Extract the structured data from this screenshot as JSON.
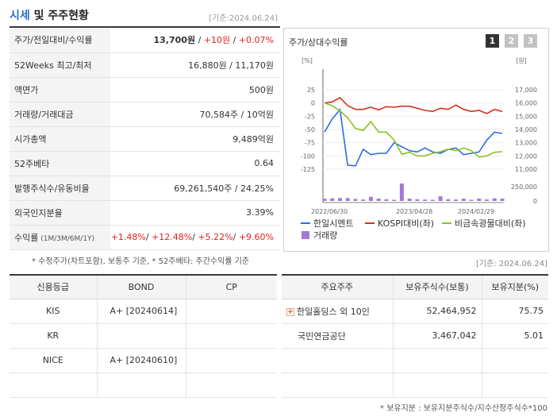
{
  "header": {
    "title_a": "시세",
    "title_b": " 및 주주현황",
    "date": "[기준:2024.06.24]"
  },
  "price_table": [
    {
      "label": "주가/전일대비/수익률",
      "parts": [
        {
          "text": "13,700원",
          "style": "bold"
        },
        {
          "text": " / ",
          "style": ""
        },
        {
          "text": "+10원",
          "style": "red"
        },
        {
          "text": " / ",
          "style": ""
        },
        {
          "text": "+0.07%",
          "style": "red"
        }
      ]
    },
    {
      "label": "52Weeks 최고/최저",
      "parts": [
        {
          "text": "16,880원 / 11,170원",
          "style": ""
        }
      ]
    },
    {
      "label": "액면가",
      "parts": [
        {
          "text": "500원",
          "style": ""
        }
      ]
    },
    {
      "label": "거래량/거래대금",
      "parts": [
        {
          "text": "70,584주 / 10억원",
          "style": ""
        }
      ]
    },
    {
      "label": "시가총액",
      "parts": [
        {
          "text": "9,489억원",
          "style": ""
        }
      ]
    },
    {
      "label": "52주베타",
      "parts": [
        {
          "text": "0.64",
          "style": ""
        }
      ]
    },
    {
      "label": "발행주식수/유동비율",
      "parts": [
        {
          "text": "69,261,540주 / 24.25%",
          "style": ""
        }
      ]
    },
    {
      "label": "외국인지분율",
      "parts": [
        {
          "text": "3.39%",
          "style": ""
        }
      ]
    },
    {
      "label": "수익률",
      "label_small": " (1M/3M/6M/1Y)",
      "parts": [
        {
          "text": "+1.48%",
          "style": "red"
        },
        {
          "text": "/ ",
          "style": ""
        },
        {
          "text": "+12.48%",
          "style": "red"
        },
        {
          "text": "/ ",
          "style": ""
        },
        {
          "text": "+5.22%",
          "style": "red"
        },
        {
          "text": "/ ",
          "style": ""
        },
        {
          "text": "+9.60%",
          "style": "red"
        }
      ]
    }
  ],
  "price_note": "* 수정주가(차트포함), 보통주 기준, * 52주베타: 주간수익률 기준",
  "chart": {
    "title": "주가/상대수익률",
    "pages": [
      "1",
      "2",
      "3"
    ],
    "active_page": 0,
    "left_unit": "[%]",
    "right_unit": "[원]",
    "left_ticks": [
      "25",
      "0",
      "-25",
      "-50",
      "-75",
      "-100",
      "-125"
    ],
    "right_ticks": [
      "17,000",
      "16,000",
      "15,000",
      "14,000",
      "13,000",
      "12,000",
      "11,000"
    ],
    "vol_ticks": [
      "250,000",
      "0"
    ],
    "x_ticks": [
      "2022/06/30",
      "2023/04/28",
      "2024/02/29"
    ],
    "legend": [
      {
        "name": "한일시멘트",
        "color": "#2a6fdb",
        "kind": "line"
      },
      {
        "name": "KOSPI대비(좌)",
        "color": "#d1321e",
        "kind": "line"
      },
      {
        "name": "비금속광물대비(좌)",
        "color": "#8cbf26",
        "kind": "line"
      },
      {
        "name": "거래량",
        "color": "#a27ad8",
        "kind": "box"
      }
    ]
  },
  "chart_data": {
    "type": "line",
    "x_labels": [
      "2022/06/30",
      "2023/04/28",
      "2024/02/29"
    ],
    "left_axis": {
      "unit": "%",
      "range": [
        -125,
        25
      ]
    },
    "right_axis": {
      "unit": "원",
      "range": [
        11000,
        17000
      ]
    },
    "series": [
      {
        "name": "한일시멘트",
        "axis": "right",
        "values": [
          13800,
          14800,
          15500,
          11300,
          11250,
          12500,
          12100,
          12200,
          12200,
          13000,
          12700,
          12400,
          12300,
          12600,
          12300,
          12200,
          12500,
          12600,
          12100,
          12200,
          12300,
          13200,
          13800,
          13700
        ]
      },
      {
        "name": "KOSPI대비(좌)",
        "axis": "left",
        "values": [
          0,
          2,
          10,
          -5,
          -12,
          -12,
          -8,
          -13,
          -7,
          -8,
          -6,
          -6,
          -10,
          -14,
          -16,
          -10,
          -12,
          -4,
          -12,
          -16,
          -14,
          -20,
          -12,
          -16
        ]
      },
      {
        "name": "비금속광물대비(좌)",
        "axis": "left",
        "values": [
          0,
          -5,
          -15,
          -28,
          -48,
          -52,
          -35,
          -55,
          -55,
          -70,
          -97,
          -93,
          -100,
          -100,
          -95,
          -92,
          -87,
          -90,
          -85,
          -90,
          -102,
          -100,
          -93,
          -92
        ]
      },
      {
        "name": "거래량",
        "axis": "volume",
        "values": [
          40000,
          45000,
          50000,
          50000,
          35000,
          25000,
          70000,
          40000,
          30000,
          20000,
          300000,
          40000,
          30000,
          25000,
          20000,
          80000,
          30000,
          25000,
          40000,
          20000,
          40000,
          25000,
          45000,
          40000
        ]
      }
    ]
  },
  "mid_date": "[기준: 2024.06.24]",
  "credit_table": {
    "headers": [
      "신용등급",
      "BOND",
      "CP"
    ],
    "rows": [
      [
        "KIS",
        "A+  [20240614]",
        ""
      ],
      [
        "KR",
        "",
        ""
      ],
      [
        "NICE",
        "A+  [20240610]",
        ""
      ],
      [
        "",
        "",
        ""
      ]
    ]
  },
  "holder_table": {
    "headers": [
      "주요주주",
      "보유주식수(보통)",
      "보유지분(%)"
    ],
    "rows": [
      {
        "expand": "+",
        "name": "한일홀딩스 외 10인",
        "shares": "52,464,952",
        "pct": "75.75"
      },
      {
        "expand": "",
        "name": "국민연금공단",
        "shares": "3,467,042",
        "pct": "5.01"
      },
      {
        "expand": "",
        "name": "",
        "shares": "",
        "pct": ""
      },
      {
        "expand": "",
        "name": "",
        "shares": "",
        "pct": ""
      }
    ]
  },
  "holder_note": "* 보유지분 : 보유지분주식수/지수산정주식수*100"
}
